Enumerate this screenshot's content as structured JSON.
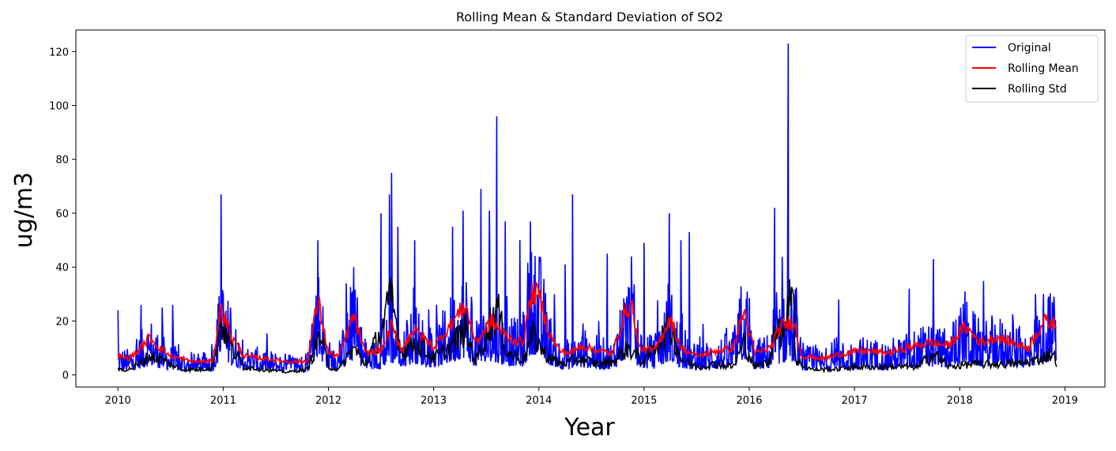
{
  "chart_data": {
    "type": "line",
    "title": "Rolling Mean & Standard Deviation of SO2",
    "xlabel": "Year",
    "ylabel": "ug/m3",
    "xlim": [
      2009.6,
      2019.38
    ],
    "ylim": [
      -4.5,
      128
    ],
    "xticks": [
      2010,
      2011,
      2012,
      2013,
      2014,
      2015,
      2016,
      2017,
      2018,
      2019
    ],
    "yticks": [
      0,
      20,
      40,
      60,
      80,
      100,
      120
    ],
    "grid": false,
    "legend_position": "top-right",
    "series": [
      {
        "name": "Original",
        "color": "#0000ff",
        "peaks": [
          {
            "x": 2010.0,
            "y": 24
          },
          {
            "x": 2010.22,
            "y": 26
          },
          {
            "x": 2010.42,
            "y": 25
          },
          {
            "x": 2010.52,
            "y": 26
          },
          {
            "x": 2010.98,
            "y": 67
          },
          {
            "x": 2011.07,
            "y": 25
          },
          {
            "x": 2011.9,
            "y": 50
          },
          {
            "x": 2012.17,
            "y": 34
          },
          {
            "x": 2012.24,
            "y": 40
          },
          {
            "x": 2012.5,
            "y": 60
          },
          {
            "x": 2012.58,
            "y": 67
          },
          {
            "x": 2012.6,
            "y": 75
          },
          {
            "x": 2012.66,
            "y": 55
          },
          {
            "x": 2012.82,
            "y": 50
          },
          {
            "x": 2013.18,
            "y": 55
          },
          {
            "x": 2013.28,
            "y": 61
          },
          {
            "x": 2013.45,
            "y": 69
          },
          {
            "x": 2013.53,
            "y": 61
          },
          {
            "x": 2013.6,
            "y": 96
          },
          {
            "x": 2013.68,
            "y": 57
          },
          {
            "x": 2013.82,
            "y": 50
          },
          {
            "x": 2013.92,
            "y": 57
          },
          {
            "x": 2014.25,
            "y": 41
          },
          {
            "x": 2014.32,
            "y": 67
          },
          {
            "x": 2014.65,
            "y": 45
          },
          {
            "x": 2014.88,
            "y": 44
          },
          {
            "x": 2015.0,
            "y": 49
          },
          {
            "x": 2015.24,
            "y": 60
          },
          {
            "x": 2015.35,
            "y": 50
          },
          {
            "x": 2015.43,
            "y": 53
          },
          {
            "x": 2015.98,
            "y": 31
          },
          {
            "x": 2016.24,
            "y": 62
          },
          {
            "x": 2016.37,
            "y": 123
          },
          {
            "x": 2016.85,
            "y": 28
          },
          {
            "x": 2017.52,
            "y": 32
          },
          {
            "x": 2017.75,
            "y": 43
          },
          {
            "x": 2018.05,
            "y": 31
          },
          {
            "x": 2018.72,
            "y": 30
          },
          {
            "x": 2018.88,
            "y": 27
          }
        ]
      },
      {
        "name": "Rolling Mean",
        "color": "#ff0000",
        "points": [
          {
            "x": 2010.0,
            "y": 7
          },
          {
            "x": 2010.1,
            "y": 6
          },
          {
            "x": 2010.2,
            "y": 9
          },
          {
            "x": 2010.3,
            "y": 14
          },
          {
            "x": 2010.4,
            "y": 10
          },
          {
            "x": 2010.5,
            "y": 7
          },
          {
            "x": 2010.6,
            "y": 6
          },
          {
            "x": 2010.7,
            "y": 5
          },
          {
            "x": 2010.8,
            "y": 5
          },
          {
            "x": 2010.9,
            "y": 5
          },
          {
            "x": 2010.98,
            "y": 25
          },
          {
            "x": 2011.08,
            "y": 14
          },
          {
            "x": 2011.2,
            "y": 7
          },
          {
            "x": 2011.4,
            "y": 6
          },
          {
            "x": 2011.6,
            "y": 5
          },
          {
            "x": 2011.8,
            "y": 5
          },
          {
            "x": 2011.9,
            "y": 28
          },
          {
            "x": 2012.0,
            "y": 8
          },
          {
            "x": 2012.1,
            "y": 7
          },
          {
            "x": 2012.24,
            "y": 22
          },
          {
            "x": 2012.35,
            "y": 8
          },
          {
            "x": 2012.5,
            "y": 9
          },
          {
            "x": 2012.6,
            "y": 18
          },
          {
            "x": 2012.7,
            "y": 9
          },
          {
            "x": 2012.8,
            "y": 17
          },
          {
            "x": 2012.9,
            "y": 14
          },
          {
            "x": 2013.0,
            "y": 10
          },
          {
            "x": 2013.15,
            "y": 18
          },
          {
            "x": 2013.3,
            "y": 26
          },
          {
            "x": 2013.4,
            "y": 12
          },
          {
            "x": 2013.55,
            "y": 20
          },
          {
            "x": 2013.7,
            "y": 14
          },
          {
            "x": 2013.85,
            "y": 12
          },
          {
            "x": 2013.93,
            "y": 30
          },
          {
            "x": 2014.0,
            "y": 30
          },
          {
            "x": 2014.1,
            "y": 15
          },
          {
            "x": 2014.2,
            "y": 9
          },
          {
            "x": 2014.3,
            "y": 8
          },
          {
            "x": 2014.4,
            "y": 11
          },
          {
            "x": 2014.55,
            "y": 9
          },
          {
            "x": 2014.7,
            "y": 8
          },
          {
            "x": 2014.8,
            "y": 21
          },
          {
            "x": 2014.88,
            "y": 27
          },
          {
            "x": 2014.95,
            "y": 10
          },
          {
            "x": 2015.1,
            "y": 9
          },
          {
            "x": 2015.25,
            "y": 21
          },
          {
            "x": 2015.35,
            "y": 10
          },
          {
            "x": 2015.5,
            "y": 7
          },
          {
            "x": 2015.7,
            "y": 9
          },
          {
            "x": 2015.85,
            "y": 10
          },
          {
            "x": 2015.95,
            "y": 24
          },
          {
            "x": 2016.05,
            "y": 8
          },
          {
            "x": 2016.2,
            "y": 10
          },
          {
            "x": 2016.3,
            "y": 18
          },
          {
            "x": 2016.42,
            "y": 20
          },
          {
            "x": 2016.5,
            "y": 7
          },
          {
            "x": 2016.7,
            "y": 6
          },
          {
            "x": 2016.9,
            "y": 8
          },
          {
            "x": 2017.1,
            "y": 9
          },
          {
            "x": 2017.3,
            "y": 8
          },
          {
            "x": 2017.5,
            "y": 10
          },
          {
            "x": 2017.7,
            "y": 12
          },
          {
            "x": 2017.9,
            "y": 11
          },
          {
            "x": 2018.05,
            "y": 18
          },
          {
            "x": 2018.2,
            "y": 12
          },
          {
            "x": 2018.35,
            "y": 14
          },
          {
            "x": 2018.5,
            "y": 12
          },
          {
            "x": 2018.65,
            "y": 10
          },
          {
            "x": 2018.8,
            "y": 20
          },
          {
            "x": 2018.88,
            "y": 19
          },
          {
            "x": 2018.92,
            "y": 19
          }
        ]
      },
      {
        "name": "Rolling Std",
        "color": "#000000",
        "points": [
          {
            "x": 2010.0,
            "y": 2
          },
          {
            "x": 2010.1,
            "y": 2
          },
          {
            "x": 2010.2,
            "y": 4
          },
          {
            "x": 2010.3,
            "y": 7
          },
          {
            "x": 2010.4,
            "y": 6
          },
          {
            "x": 2010.5,
            "y": 4
          },
          {
            "x": 2010.6,
            "y": 2
          },
          {
            "x": 2010.7,
            "y": 2
          },
          {
            "x": 2010.8,
            "y": 2
          },
          {
            "x": 2010.9,
            "y": 3
          },
          {
            "x": 2010.98,
            "y": 20
          },
          {
            "x": 2011.08,
            "y": 10
          },
          {
            "x": 2011.2,
            "y": 3
          },
          {
            "x": 2011.4,
            "y": 2
          },
          {
            "x": 2011.6,
            "y": 1
          },
          {
            "x": 2011.8,
            "y": 2
          },
          {
            "x": 2011.92,
            "y": 15
          },
          {
            "x": 2012.0,
            "y": 3
          },
          {
            "x": 2012.1,
            "y": 2
          },
          {
            "x": 2012.24,
            "y": 10
          },
          {
            "x": 2012.35,
            "y": 4
          },
          {
            "x": 2012.5,
            "y": 16
          },
          {
            "x": 2012.6,
            "y": 28
          },
          {
            "x": 2012.7,
            "y": 8
          },
          {
            "x": 2012.8,
            "y": 12
          },
          {
            "x": 2012.9,
            "y": 10
          },
          {
            "x": 2013.0,
            "y": 6
          },
          {
            "x": 2013.15,
            "y": 10
          },
          {
            "x": 2013.3,
            "y": 17
          },
          {
            "x": 2013.4,
            "y": 5
          },
          {
            "x": 2013.6,
            "y": 25
          },
          {
            "x": 2013.7,
            "y": 8
          },
          {
            "x": 2013.85,
            "y": 6
          },
          {
            "x": 2013.95,
            "y": 15
          },
          {
            "x": 2014.05,
            "y": 8
          },
          {
            "x": 2014.2,
            "y": 4
          },
          {
            "x": 2014.3,
            "y": 5
          },
          {
            "x": 2014.4,
            "y": 6
          },
          {
            "x": 2014.55,
            "y": 4
          },
          {
            "x": 2014.7,
            "y": 5
          },
          {
            "x": 2014.85,
            "y": 10
          },
          {
            "x": 2015.0,
            "y": 5
          },
          {
            "x": 2015.25,
            "y": 18
          },
          {
            "x": 2015.35,
            "y": 6
          },
          {
            "x": 2015.5,
            "y": 3
          },
          {
            "x": 2015.7,
            "y": 4
          },
          {
            "x": 2015.85,
            "y": 3
          },
          {
            "x": 2015.95,
            "y": 12
          },
          {
            "x": 2016.05,
            "y": 3
          },
          {
            "x": 2016.2,
            "y": 5
          },
          {
            "x": 2016.25,
            "y": 22
          },
          {
            "x": 2016.33,
            "y": 12
          },
          {
            "x": 2016.37,
            "y": 33
          },
          {
            "x": 2016.42,
            "y": 33
          },
          {
            "x": 2016.44,
            "y": 5
          },
          {
            "x": 2016.6,
            "y": 2
          },
          {
            "x": 2016.8,
            "y": 2
          },
          {
            "x": 2017.0,
            "y": 3
          },
          {
            "x": 2017.2,
            "y": 3
          },
          {
            "x": 2017.4,
            "y": 3
          },
          {
            "x": 2017.6,
            "y": 3
          },
          {
            "x": 2017.75,
            "y": 8
          },
          {
            "x": 2017.9,
            "y": 3
          },
          {
            "x": 2018.1,
            "y": 4
          },
          {
            "x": 2018.3,
            "y": 4
          },
          {
            "x": 2018.5,
            "y": 4
          },
          {
            "x": 2018.7,
            "y": 5
          },
          {
            "x": 2018.88,
            "y": 8
          },
          {
            "x": 2018.92,
            "y": 5
          }
        ]
      }
    ]
  }
}
